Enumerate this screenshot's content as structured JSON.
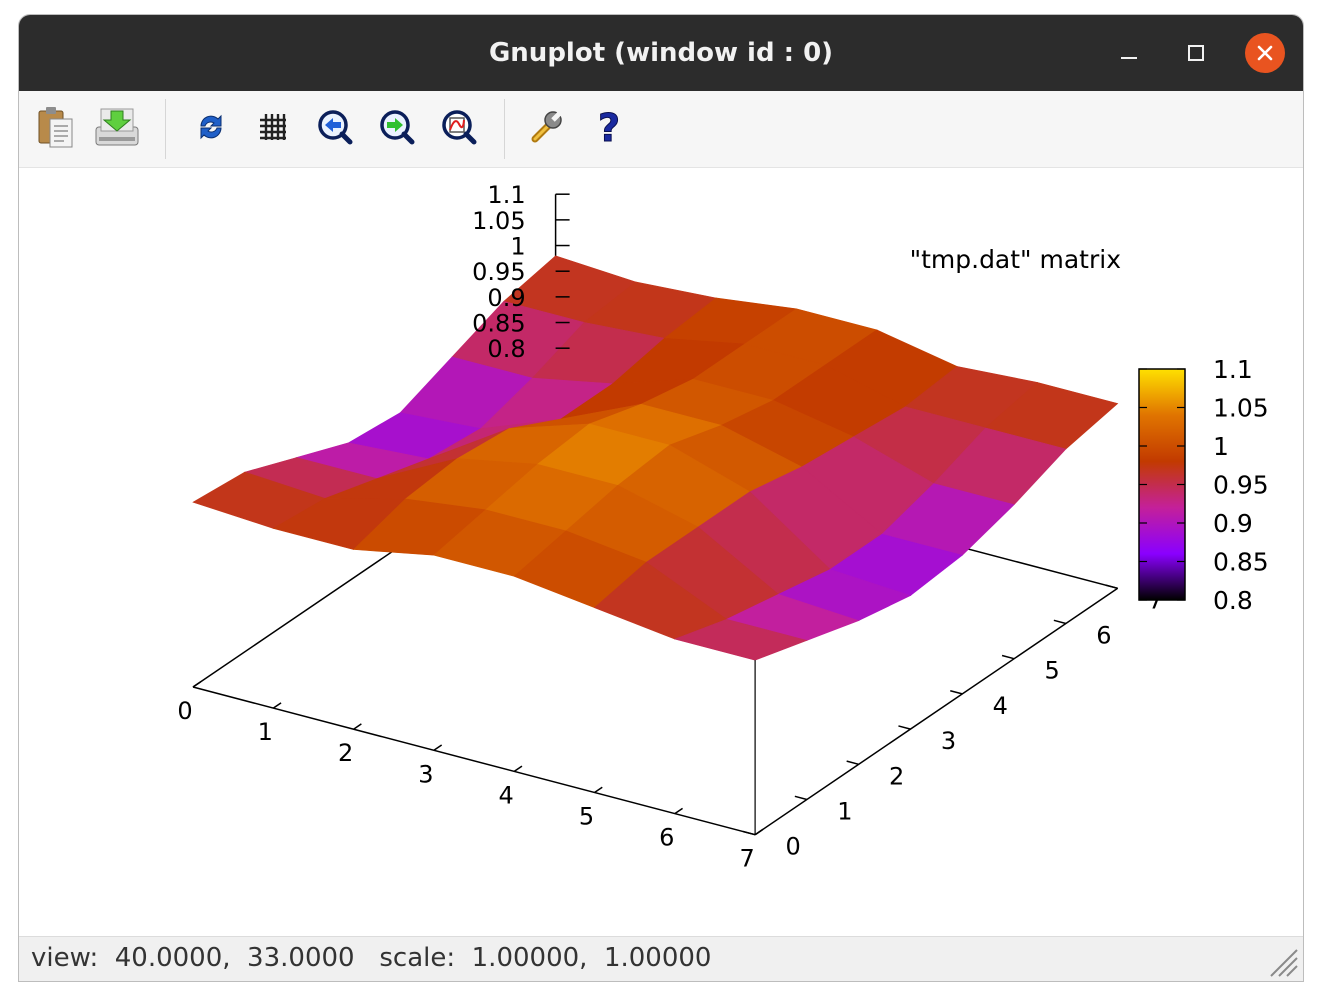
{
  "window": {
    "title": "Gnuplot (window id : 0)",
    "buttons": [
      "minimize",
      "maximize",
      "close"
    ],
    "close_color": "#e95420"
  },
  "toolbar": {
    "items": [
      {
        "icon": "copy-to-clipboard-icon"
      },
      {
        "icon": "export-icon"
      },
      {
        "icon": "replot-icon"
      },
      {
        "icon": "grid-icon"
      },
      {
        "icon": "zoom-previous-icon"
      },
      {
        "icon": "zoom-next-icon"
      },
      {
        "icon": "autoscale-icon"
      },
      {
        "icon": "settings-wrench-icon"
      },
      {
        "icon": "help-icon"
      }
    ]
  },
  "status": {
    "text": "view:  40.0000,  33.0000   scale:  1.00000,  1.00000"
  },
  "chart_data": {
    "type": "surface",
    "legend": "\"tmp.dat\" matrix",
    "x_ticks": [
      "0",
      "1",
      "2",
      "3",
      "4",
      "5",
      "6",
      "7"
    ],
    "y_ticks": [
      "0",
      "1",
      "2",
      "3",
      "4",
      "5",
      "6",
      "7"
    ],
    "z_ticks": [
      "0.8",
      "0.85",
      "0.9",
      "0.95",
      "1",
      "1.05",
      "1.1"
    ],
    "zlim": [
      0.8,
      1.1
    ],
    "cb_ticks": [
      "0.8",
      "0.85",
      "0.9",
      "0.95",
      "1",
      "1.05",
      "1.1"
    ],
    "cblim": [
      0.8,
      1.1
    ],
    "palette": [
      "#000000",
      "#8a00ff",
      "#c4209a",
      "#c23a00",
      "#e07400",
      "#ffe000"
    ],
    "view": [
      40,
      33
    ],
    "z": [
      [
        0.98,
        0.97,
        0.93,
        0.89,
        0.88,
        0.92,
        0.96,
        0.98
      ],
      [
        0.97,
        0.96,
        0.93,
        0.9,
        0.89,
        0.92,
        0.96,
        0.97
      ],
      [
        0.97,
        1.0,
        1.01,
        1.0,
        0.95,
        0.95,
        0.97,
        0.98
      ],
      [
        1.0,
        1.02,
        1.04,
        1.05,
        1.02,
        1.0,
        1.0,
        1.0
      ],
      [
        1.0,
        1.02,
        1.04,
        1.05,
        1.02,
        1.0,
        1.0,
        1.0
      ],
      [
        0.98,
        1.0,
        1.0,
        1.0,
        0.98,
        0.97,
        0.96,
        0.97
      ],
      [
        0.96,
        0.93,
        0.91,
        0.89,
        0.89,
        0.92,
        0.96,
        0.98
      ],
      [
        0.96,
        0.93,
        0.9,
        0.88,
        0.89,
        0.92,
        0.96,
        0.98
      ]
    ]
  }
}
